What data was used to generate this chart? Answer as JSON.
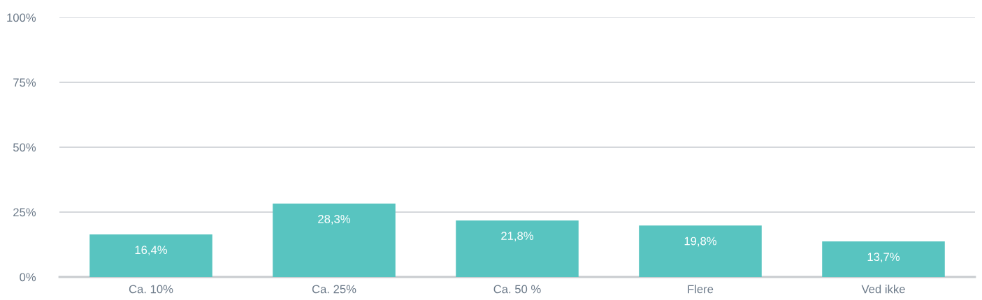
{
  "chart_data": {
    "type": "bar",
    "categories": [
      "Ca. 10%",
      "Ca. 25%",
      "Ca. 50 %",
      "Flere",
      "Ved ikke"
    ],
    "values": [
      16.4,
      28.3,
      21.8,
      19.8,
      13.7
    ],
    "value_labels": [
      "16,4%",
      "28,3%",
      "21,8%",
      "19,8%",
      "13,7%"
    ],
    "color": "#58c4c0",
    "ylim": [
      0,
      100
    ],
    "yticks": [
      {
        "value": 0,
        "label": "0%"
      },
      {
        "value": 25,
        "label": "25%"
      },
      {
        "value": 50,
        "label": "50%"
      },
      {
        "value": 75,
        "label": "75%"
      },
      {
        "value": 100,
        "label": "100%"
      }
    ],
    "grid": "y"
  }
}
